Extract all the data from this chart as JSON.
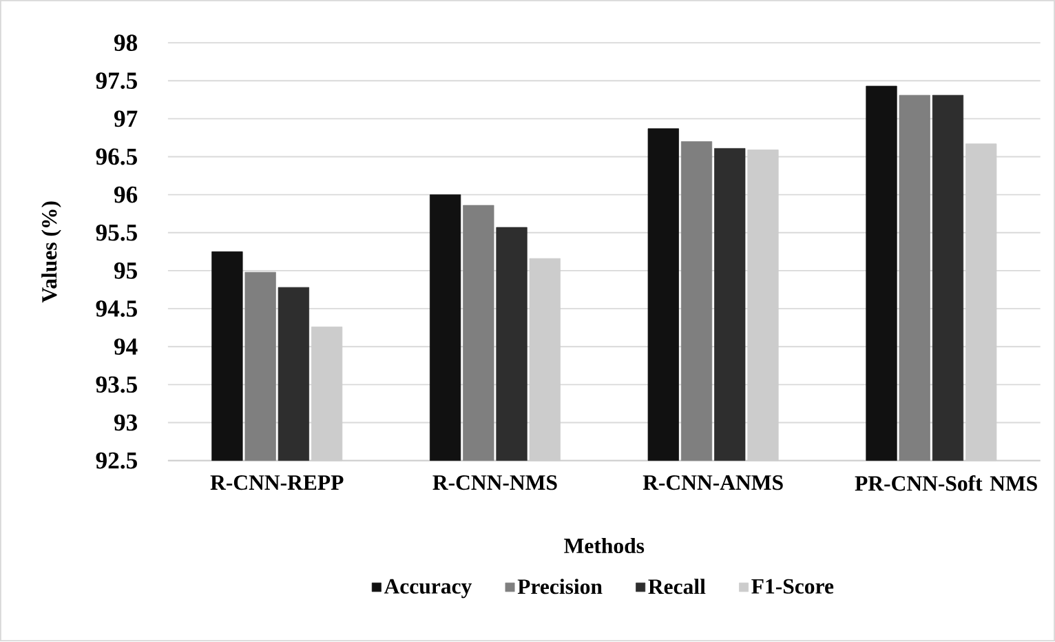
{
  "chart_data": {
    "type": "bar",
    "xlabel": "Methods",
    "ylabel": "Values (%)",
    "categories": [
      "R-CNN-REPP",
      "R-CNN-NMS",
      "R-CNN-ANMS",
      "PR-CNN-Soft NMS"
    ],
    "series": [
      {
        "name": "Accuracy",
        "color": "#111111",
        "values": [
          95.25,
          96.0,
          96.87,
          97.43
        ]
      },
      {
        "name": "Precision",
        "color": "#7f7f7f",
        "values": [
          94.98,
          95.86,
          96.7,
          97.31
        ]
      },
      {
        "name": "Recall",
        "color": "#2e2e2e",
        "values": [
          94.78,
          95.57,
          96.61,
          97.31
        ]
      },
      {
        "name": "F1-Score",
        "color": "#cccccc",
        "values": [
          94.26,
          95.16,
          96.59,
          96.67
        ]
      }
    ],
    "ylim": [
      92.5,
      98
    ],
    "yticks": [
      92.5,
      93,
      93.5,
      94,
      94.5,
      95,
      95.5,
      96,
      96.5,
      97,
      97.5,
      98
    ],
    "grid": "y",
    "legend": "bottom"
  }
}
